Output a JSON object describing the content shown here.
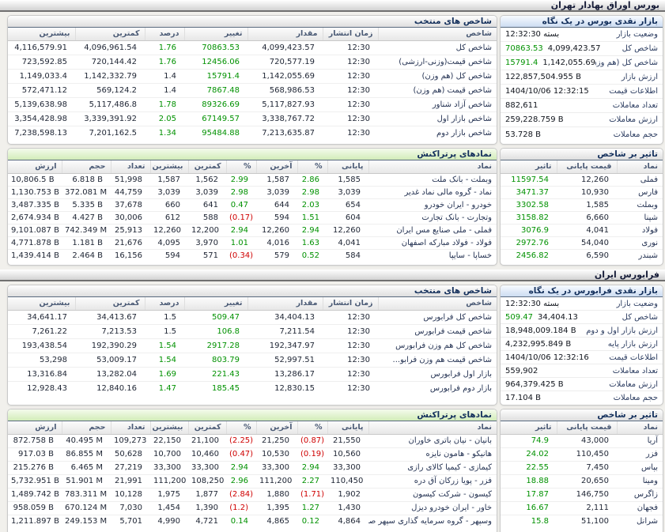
{
  "colors": {
    "positive": "#009100",
    "negative": "#cf0000",
    "header_text": "#14305c"
  },
  "bourse": {
    "section_title": "بورس اوراق بهادار تهران",
    "summary": {
      "title": "بازار نقدی بورس در یک نگاه",
      "rows": [
        {
          "label": "وضعیت بازار",
          "value": "بسته 12:32:30"
        },
        {
          "label": "شاخص کل",
          "value": "4,099,423.57",
          "change": "70863.53"
        },
        {
          "label": "شاخص کل (هم وزن)",
          "value": "1,142,055.69",
          "change": "15791.4"
        },
        {
          "label": "ارزش بازار",
          "value": "122,857,504.955 B"
        },
        {
          "label": "اطلاعات قیمت",
          "value": "1404/10/06 12:32:15"
        },
        {
          "label": "تعداد معاملات",
          "value": "882,611"
        },
        {
          "label": "ارزش معاملات",
          "value": "259,228.759 B"
        },
        {
          "label": "حجم معاملات",
          "value": "53.728 B"
        }
      ]
    },
    "indices": {
      "title": "شاخص های منتخب",
      "headers": [
        "شاخص",
        "زمان انتشار",
        "مقدار",
        "تغییر",
        "درصد",
        "کمترین",
        "بیشترین"
      ],
      "rows": [
        [
          "شاخص کل",
          "12:30",
          "4,099,423.57",
          {
            "v": "70863.53",
            "c": "g"
          },
          {
            "v": "1.76",
            "c": "g"
          },
          "4,096,961.54",
          "4,116,579.91"
        ],
        [
          "شاخص قیمت(وزنی-ارزشی)",
          "12:30",
          "720,577.19",
          {
            "v": "12456.06",
            "c": "g"
          },
          {
            "v": "1.76",
            "c": "g"
          },
          "720,144.42",
          "723,592.85"
        ],
        [
          "شاخص کل (هم وزن)",
          "12:30",
          "1,142,055.69",
          {
            "v": "15791.4",
            "c": "g"
          },
          "1.4",
          "1,142,332.79",
          "1,149,033.4"
        ],
        [
          "شاخص قیمت (هم وزن)",
          "12:30",
          "568,986.53",
          {
            "v": "7867.48",
            "c": "g"
          },
          "1.4",
          "569,124.2",
          "572,471.12"
        ],
        [
          "شاخص آزاد شناور",
          "12:30",
          "5,117,827.93",
          {
            "v": "89326.69",
            "c": "g"
          },
          {
            "v": "1.78",
            "c": "g"
          },
          "5,117,486.8",
          "5,139,638.98"
        ],
        [
          "شاخص بازار اول",
          "12:30",
          "3,338,767.72",
          {
            "v": "67149.57",
            "c": "g"
          },
          {
            "v": "2.05",
            "c": "g"
          },
          "3,339,391.92",
          "3,354,428.98"
        ],
        [
          "شاخص بازار دوم",
          "12:30",
          "7,213,635.87",
          {
            "v": "95484.88",
            "c": "g"
          },
          {
            "v": "1.34",
            "c": "g"
          },
          "7,201,162.5",
          "7,238,598.13"
        ]
      ]
    },
    "pertr": {
      "title": "نمادهای پرتراکنش",
      "headers": [
        "نماد",
        "پایانی",
        "%",
        "آخرین",
        "%",
        "کمترین",
        "بیشترین",
        "تعداد",
        "حجم",
        "ارزش"
      ],
      "rows": [
        [
          "وبملت - بانک ملت",
          "1,585",
          {
            "v": "2.86",
            "c": "g"
          },
          "1,587",
          {
            "v": "2.99",
            "c": "g"
          },
          "1,562",
          "1,587",
          "51,998",
          "6.818 B",
          "10,806.5 B"
        ],
        [
          "نماد - گروه مالی نماد غدیر",
          "3,039",
          {
            "v": "2.98",
            "c": "g"
          },
          "3,039",
          {
            "v": "2.98",
            "c": "g"
          },
          "3,039",
          "3,039",
          "44,759",
          "372.081 M",
          "1,130.753 B"
        ],
        [
          "خودرو - ایران خودرو",
          "654",
          {
            "v": "2.03",
            "c": "g"
          },
          "644",
          {
            "v": "0.47",
            "c": "g"
          },
          "641",
          "660",
          "37,678",
          "5.335 B",
          "3,487.335 B"
        ],
        [
          "وتجارت - بانک تجارت",
          "604",
          {
            "v": "1.51",
            "c": "g"
          },
          "594",
          {
            "v": "(0.17)",
            "c": "r"
          },
          "588",
          "612",
          "30,006",
          "4.427 B",
          "2,674.934 B"
        ],
        [
          "فملی - ملی صنایع مس ایران",
          "12,260",
          {
            "v": "2.94",
            "c": "g"
          },
          "12,260",
          {
            "v": "2.94",
            "c": "g"
          },
          "12,200",
          "12,260",
          "25,913",
          "742.349 M",
          "9,101.087 B"
        ],
        [
          "فولاد - فولاد مبارکه اصفهان",
          "4,041",
          {
            "v": "1.63",
            "c": "g"
          },
          "4,016",
          {
            "v": "1.01",
            "c": "g"
          },
          "3,970",
          "4,095",
          "21,676",
          "1.181 B",
          "4,771.878 B"
        ],
        [
          "خساپا - سایپا",
          "584",
          {
            "v": "0.52",
            "c": "g"
          },
          "579",
          {
            "v": "(0.34)",
            "c": "r"
          },
          "571",
          "594",
          "16,156",
          "2.464 B",
          "1,439.414 B"
        ]
      ]
    },
    "impact": {
      "title": "تاثیر بر شاخص",
      "headers": [
        "نماد",
        "قیمت پایانی",
        "تاثیر"
      ],
      "rows": [
        [
          "فملی",
          "12,260",
          {
            "v": "11597.54",
            "c": "g"
          }
        ],
        [
          "فارس",
          "10,930",
          {
            "v": "3471.37",
            "c": "g"
          }
        ],
        [
          "وبملت",
          "1,585",
          {
            "v": "3302.58",
            "c": "g"
          }
        ],
        [
          "شپنا",
          "6,660",
          {
            "v": "3158.82",
            "c": "g"
          }
        ],
        [
          "فولاد",
          "4,041",
          {
            "v": "3076.9",
            "c": "g"
          }
        ],
        [
          "نوری",
          "54,040",
          {
            "v": "2972.76",
            "c": "g"
          }
        ],
        [
          "شبندر",
          "6,590",
          {
            "v": "2456.82",
            "c": "g"
          }
        ]
      ]
    }
  },
  "farabourse": {
    "section_title": "فرابورس ایران",
    "summary": {
      "title": "بازار نقدی فرابورس در یک نگاه",
      "rows": [
        {
          "label": "وضعیت بازار",
          "value": "بسته 12:32:30"
        },
        {
          "label": "شاخص کل",
          "value": "34,404.13",
          "change": "509.47"
        },
        {
          "label": "ارزش بازار اول و دوم",
          "value": "18,948,009.184 B"
        },
        {
          "label": "ارزش بازار پایه",
          "value": "4,232,995.849 B"
        },
        {
          "label": "اطلاعات قیمت",
          "value": "1404/10/06 12:32:16"
        },
        {
          "label": "تعداد معاملات",
          "value": "559,902"
        },
        {
          "label": "ارزش معاملات",
          "value": "964,379.425 B"
        },
        {
          "label": "حجم معاملات",
          "value": "17.104 B"
        }
      ]
    },
    "indices": {
      "title": "شاخص های منتخب",
      "headers": [
        "شاخص",
        "زمان انتشار",
        "مقدار",
        "تغییر",
        "درصد",
        "کمترین",
        "بیشترین"
      ],
      "rows": [
        [
          "شاخص کل فرابورس",
          "12:30",
          "34,404.13",
          {
            "v": "509.47",
            "c": "g"
          },
          "1.5",
          "34,413.67",
          "34,641.17"
        ],
        [
          "شاخص قیمت فرابورس",
          "12:30",
          "7,211.54",
          {
            "v": "106.8",
            "c": "g"
          },
          "1.5",
          "7,213.53",
          "7,261.22"
        ],
        [
          "شاخص کل هم وزن فرابورس",
          "12:30",
          "192,347.97",
          {
            "v": "2917.28",
            "c": "g"
          },
          {
            "v": "1.54",
            "c": "g"
          },
          "192,390.29",
          "193,438.54"
        ],
        [
          "شاخص قیمت هم وزن فرابو...",
          "12:30",
          "52,997.51",
          {
            "v": "803.79",
            "c": "g"
          },
          {
            "v": "1.54",
            "c": "g"
          },
          "53,009.17",
          "53,298"
        ],
        [
          "بازار اول فرابورس",
          "12:30",
          "13,286.17",
          {
            "v": "221.43",
            "c": "g"
          },
          {
            "v": "1.69",
            "c": "g"
          },
          "13,282.04",
          "13,316.84"
        ],
        [
          "بازار دوم فرابورس",
          "12:30",
          "12,830.15",
          {
            "v": "185.45",
            "c": "g"
          },
          {
            "v": "1.47",
            "c": "g"
          },
          "12,840.16",
          "12,928.43"
        ]
      ]
    },
    "pertr": {
      "title": "نمادهای پرتراکنش",
      "headers": [
        "نماد",
        "پایانی",
        "%",
        "آخرین",
        "%",
        "کمترین",
        "بیشترین",
        "تعداد",
        "حجم",
        "ارزش"
      ],
      "rows": [
        [
          "بانیان - نیان باتری خاوران",
          "21,550",
          {
            "v": "(0.87)",
            "c": "r"
          },
          "21,250",
          {
            "v": "(2.25)",
            "c": "r"
          },
          "21,100",
          "22,150",
          "109,273",
          "40.495 M",
          "872.758 B"
        ],
        [
          "هانیکو - هامون نایزه",
          "10,560",
          {
            "v": "(0.19)",
            "c": "r"
          },
          "10,530",
          {
            "v": "(0.47)",
            "c": "r"
          },
          "10,460",
          "10,700",
          "50,628",
          "86.855 M",
          "917.03 B"
        ],
        [
          "کیمازی - کیمیا کالای رازی",
          "33,300",
          {
            "v": "2.94",
            "c": "g"
          },
          "33,300",
          {
            "v": "2.94",
            "c": "g"
          },
          "33,300",
          "33,300",
          "27,219",
          "6.465 M",
          "215.276 B"
        ],
        [
          "فزر - پویا زرکان آق دره",
          "110,450",
          {
            "v": "2.27",
            "c": "g"
          },
          "111,200",
          {
            "v": "2.96",
            "c": "g"
          },
          "108,250",
          "111,200",
          "21,991",
          "51.901 M",
          "5,732.951 B"
        ],
        [
          "کیسون - شرکت کیسون",
          "1,902",
          {
            "v": "(1.71)",
            "c": "r"
          },
          "1,880",
          {
            "v": "(2.84)",
            "c": "r"
          },
          "1,877",
          "1,975",
          "10,128",
          "783.311 M",
          "1,489.742 B"
        ],
        [
          "خاور - ایران خودرو دیزل",
          "1,430",
          {
            "v": "1.27",
            "c": "g"
          },
          "1,395",
          {
            "v": "(1.2)",
            "c": "r"
          },
          "1,390",
          "1,454",
          "7,030",
          "670.124 M",
          "958.059 B"
        ],
        [
          "وسپهر - گروه سرمایه گذاری سپهر صادر...",
          "4,864",
          {
            "v": "0.12",
            "c": "g"
          },
          "4,865",
          {
            "v": "0.14",
            "c": "g"
          },
          "4,721",
          "4,990",
          "5,701",
          "249.153 M",
          "1,211.897 B"
        ]
      ]
    },
    "impact": {
      "title": "تاثیر بر شاخص",
      "headers": [
        "نماد",
        "قیمت پایانی",
        "تاثیر"
      ],
      "rows": [
        [
          "آریا",
          "43,000",
          {
            "v": "74.9",
            "c": "g"
          }
        ],
        [
          "فزر",
          "110,450",
          {
            "v": "24.02",
            "c": "g"
          }
        ],
        [
          "بپاس",
          "7,450",
          {
            "v": "22.55",
            "c": "g"
          }
        ],
        [
          "ومینا",
          "20,650",
          {
            "v": "18.88",
            "c": "g"
          }
        ],
        [
          "زاگرس",
          "146,750",
          {
            "v": "17.87",
            "c": "g"
          }
        ],
        [
          "فجهان",
          "2,111",
          {
            "v": "16.67",
            "c": "g"
          }
        ],
        [
          "شرانل",
          "51,100",
          {
            "v": "15.8",
            "c": "g"
          }
        ]
      ]
    }
  }
}
